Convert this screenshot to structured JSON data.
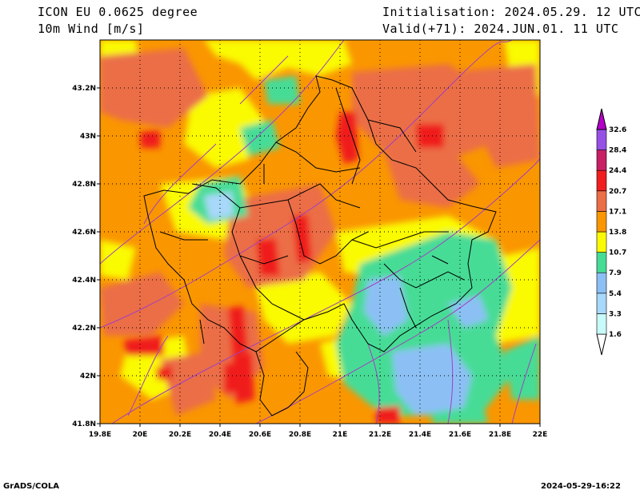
{
  "header": {
    "model": "ICON EU 0.0625 degree",
    "variable": "10m Wind [m/s]",
    "initialisation": "Initialisation: 2024.05.29. 12 UTC",
    "valid": "Valid(+71): 2024.JUN.01. 11 UTC"
  },
  "footer": {
    "software": "GrADS/COLA",
    "timestamp": "2024-05-29-16:22"
  },
  "map": {
    "lon_range": [
      19.8,
      22.0
    ],
    "lat_range": [
      41.8,
      43.4
    ],
    "lon_ticks": [
      "19.8E",
      "20E",
      "20.2E",
      "20.4E",
      "20.6E",
      "20.8E",
      "21E",
      "21.2E",
      "21.4E",
      "21.6E",
      "21.8E",
      "22E"
    ],
    "lat_ticks": [
      "41.8N",
      "42N",
      "42.2N",
      "42.4N",
      "42.6N",
      "42.8N",
      "43N",
      "43.2N"
    ],
    "grid": "dotted",
    "streamline_color": "#a040c0",
    "border_color": "#000000"
  },
  "colorbar": {
    "levels": [
      "1.6",
      "3.3",
      "5.4",
      "7.9",
      "10.7",
      "13.8",
      "17.1",
      "20.7",
      "24.4",
      "28.4",
      "32.6"
    ],
    "colors": [
      "#c8fafa",
      "#a8d8fa",
      "#8cc0f5",
      "#46dc96",
      "#fafa00",
      "#fa9600",
      "#eb6e46",
      "#f01e1e",
      "#c81e64",
      "#9650e6",
      "#6e00c8",
      "#b400c8"
    ]
  }
}
